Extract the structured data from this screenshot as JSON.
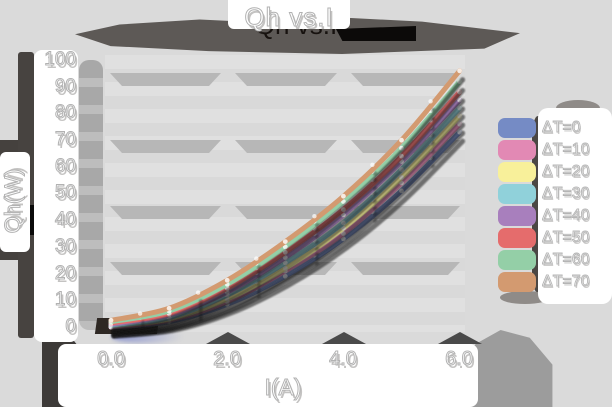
{
  "chart_data": {
    "type": "line",
    "title": "Qh vs.I",
    "xlabel": "I(A)",
    "ylabel": "Qh(W)",
    "xlim": [
      0,
      6.4
    ],
    "ylim": [
      0,
      100
    ],
    "x_ticks": [
      "0.0",
      "2.0",
      "4.0",
      "6.0"
    ],
    "x_tick_values": [
      0,
      2,
      4,
      6
    ],
    "y_ticks": [
      "0",
      "10",
      "20",
      "30",
      "40",
      "50",
      "60",
      "70",
      "80",
      "90",
      "100"
    ],
    "grid": true,
    "legend_position": "right",
    "x": [
      0,
      1,
      2,
      3,
      4,
      5,
      6
    ],
    "series": [
      {
        "name": "ΔT=0",
        "color": "#758bc5",
        "values": [
          0,
          2,
          8.5,
          19,
          33,
          51,
          73
        ]
      },
      {
        "name": "ΔT=10",
        "color": "#e289b4",
        "values": [
          0,
          2.5,
          9.5,
          21,
          35,
          54,
          76
        ]
      },
      {
        "name": "ΔT=20",
        "color": "#f8f09a",
        "values": [
          0.5,
          3,
          10.5,
          22,
          37,
          56,
          79
        ]
      },
      {
        "name": "ΔT=30",
        "color": "#90d1da",
        "values": [
          0.5,
          3.5,
          12,
          24,
          39,
          59,
          82
        ]
      },
      {
        "name": "ΔT=40",
        "color": "#a87fbd",
        "values": [
          1,
          4.5,
          13,
          26,
          42,
          62,
          85
        ]
      },
      {
        "name": "ΔT=50",
        "color": "#e56c6c",
        "values": [
          1.5,
          5,
          14.5,
          28,
          44,
          64,
          88
        ]
      },
      {
        "name": "ΔT=60",
        "color": "#94cfa7",
        "values": [
          2,
          6,
          16,
          30,
          47,
          67,
          92
        ]
      },
      {
        "name": "ΔT=70",
        "color": "#d39a70",
        "values": [
          2.5,
          7,
          17.5,
          32,
          49,
          70,
          96
        ]
      }
    ]
  },
  "style_colors": {
    "background": "#dadada",
    "grid_band": "#b7b7b7",
    "shadow_dark": "#5d5956",
    "panel_white": "#ffffff"
  }
}
